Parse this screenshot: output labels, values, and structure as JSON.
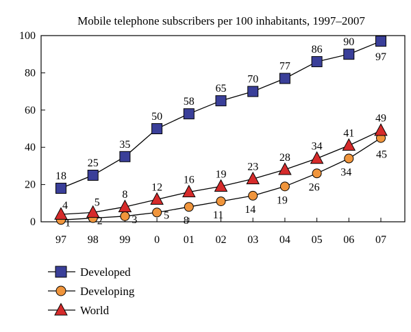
{
  "chart_data": {
    "type": "line",
    "title": "Mobile telephone subscribers per 100 inhabitants, 1997–2007",
    "xlabel": "",
    "ylabel": "",
    "categories": [
      "97",
      "98",
      "99",
      "0",
      "01",
      "02",
      "03",
      "04",
      "05",
      "06",
      "07"
    ],
    "ylim": [
      0,
      100
    ],
    "yticks": [
      "0",
      "20",
      "40",
      "60",
      "80",
      "100"
    ],
    "grid": false,
    "legend_position": "bottom-left",
    "series": [
      {
        "name": "Developed",
        "marker": "square",
        "color": "#3a3f99",
        "values": [
          18,
          25,
          35,
          50,
          58,
          65,
          70,
          77,
          86,
          90,
          97
        ],
        "labels": [
          "18",
          "25",
          "35",
          "50",
          "58",
          "65",
          "70",
          "77",
          "86",
          "90",
          "97"
        ]
      },
      {
        "name": "Developing",
        "marker": "circle",
        "color": "#f0953c",
        "values": [
          1,
          2,
          3,
          5,
          8,
          11,
          14,
          19,
          26,
          34,
          45
        ],
        "labels": [
          "1",
          "2",
          "3",
          "5",
          "8",
          "11",
          "14",
          "19",
          "26",
          "34",
          "45"
        ]
      },
      {
        "name": "World",
        "marker": "triangle",
        "color": "#d62b2b",
        "values": [
          4,
          5,
          8,
          12,
          16,
          19,
          23,
          28,
          34,
          41,
          49
        ],
        "labels": [
          "4",
          "5",
          "8",
          "12",
          "16",
          "19",
          "23",
          "28",
          "34",
          "41",
          "49"
        ]
      }
    ]
  }
}
